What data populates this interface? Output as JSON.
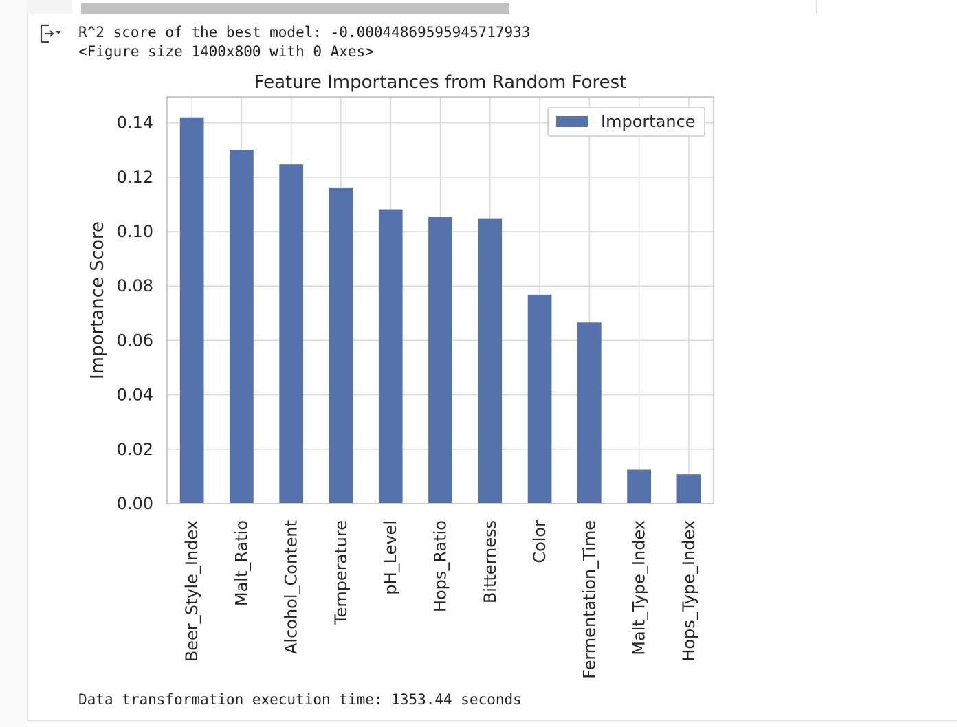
{
  "output": {
    "line1": "R^2 score of the best model: -0.00044869595945717933",
    "line2": "<Figure size 1400x800 with 0 Axes>",
    "line3": "Data transformation execution time: 1353.44 seconds",
    "icon": "output-toggle-icon"
  },
  "chart_data": {
    "type": "bar",
    "title": "Feature Importances from Random Forest",
    "xlabel": "",
    "ylabel": "Importance Score",
    "categories": [
      "Beer_Style_Index",
      "Malt_Ratio",
      "Alcohol_Content",
      "Temperature",
      "pH_Level",
      "Hops_Ratio",
      "Bitterness",
      "Color",
      "Fermentation_Time",
      "Malt_Type_Index",
      "Hops_Type_Index"
    ],
    "series": [
      {
        "name": "Importance",
        "values": [
          0.142,
          0.13,
          0.1247,
          0.1162,
          0.1082,
          0.1053,
          0.1049,
          0.0768,
          0.0666,
          0.0125,
          0.0108
        ],
        "color": "#5471ab"
      }
    ],
    "yticks": [
      "0.00",
      "0.02",
      "0.04",
      "0.06",
      "0.08",
      "0.10",
      "0.12",
      "0.14"
    ],
    "ylim": [
      0,
      0.1495
    ],
    "grid": true,
    "legend_position": "top-right"
  }
}
